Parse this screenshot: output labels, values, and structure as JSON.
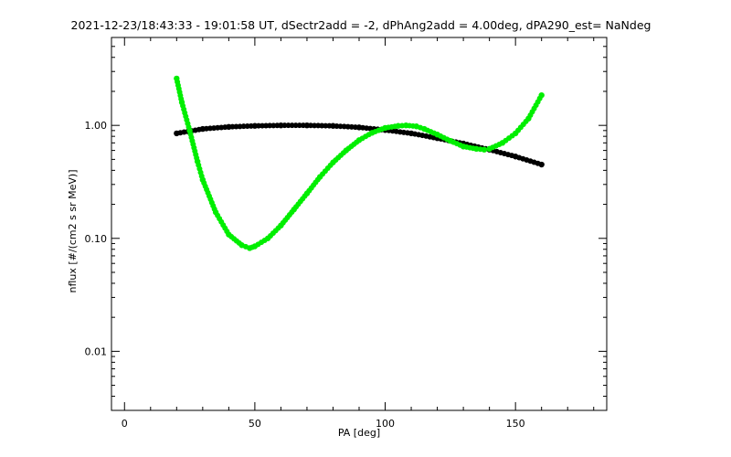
{
  "chart_data": {
    "type": "scatter",
    "title": "2021-12-23/18:43:33 - 19:01:58 UT, dSectr2add = -2, dPhAng2add = 4.00deg, dPA290_est=   NaNdeg",
    "xlabel": "PA [deg]",
    "ylabel": "nflux [#/(cm2 s sr MeV)]",
    "xlim": [
      -5,
      185
    ],
    "ylim": [
      0.003,
      6.0
    ],
    "yscale": "log",
    "x_ticks": [
      0,
      50,
      100,
      150
    ],
    "x_tick_labels": [
      "0",
      "50",
      "100",
      "150"
    ],
    "y_ticks": [
      0.01,
      0.1,
      1.0
    ],
    "y_tick_labels": [
      "0.01",
      "0.10",
      "1.00"
    ],
    "grid": false,
    "legend": "none",
    "series": [
      {
        "color": "#000000",
        "x": [
          20,
          30,
          40,
          50,
          60,
          70,
          80,
          90,
          100,
          110,
          120,
          130,
          140,
          150,
          160
        ],
        "y": [
          0.85,
          0.93,
          0.97,
          0.99,
          1.0,
          1.0,
          0.99,
          0.96,
          0.91,
          0.85,
          0.77,
          0.69,
          0.61,
          0.53,
          0.45
        ]
      },
      {
        "color": "#00ee00",
        "x": [
          20,
          22,
          25,
          28,
          30,
          35,
          40,
          45,
          48,
          50,
          55,
          60,
          65,
          70,
          75,
          80,
          85,
          90,
          95,
          100,
          105,
          108,
          112,
          115,
          120,
          125,
          130,
          135,
          138,
          140,
          145,
          150,
          155,
          160
        ],
        "y": [
          2.6,
          1.6,
          0.9,
          0.48,
          0.33,
          0.17,
          0.108,
          0.087,
          0.082,
          0.085,
          0.1,
          0.13,
          0.18,
          0.25,
          0.35,
          0.47,
          0.6,
          0.74,
          0.86,
          0.95,
          0.99,
          1.0,
          0.98,
          0.93,
          0.83,
          0.73,
          0.65,
          0.62,
          0.61,
          0.62,
          0.7,
          0.85,
          1.15,
          1.85
        ]
      }
    ]
  }
}
